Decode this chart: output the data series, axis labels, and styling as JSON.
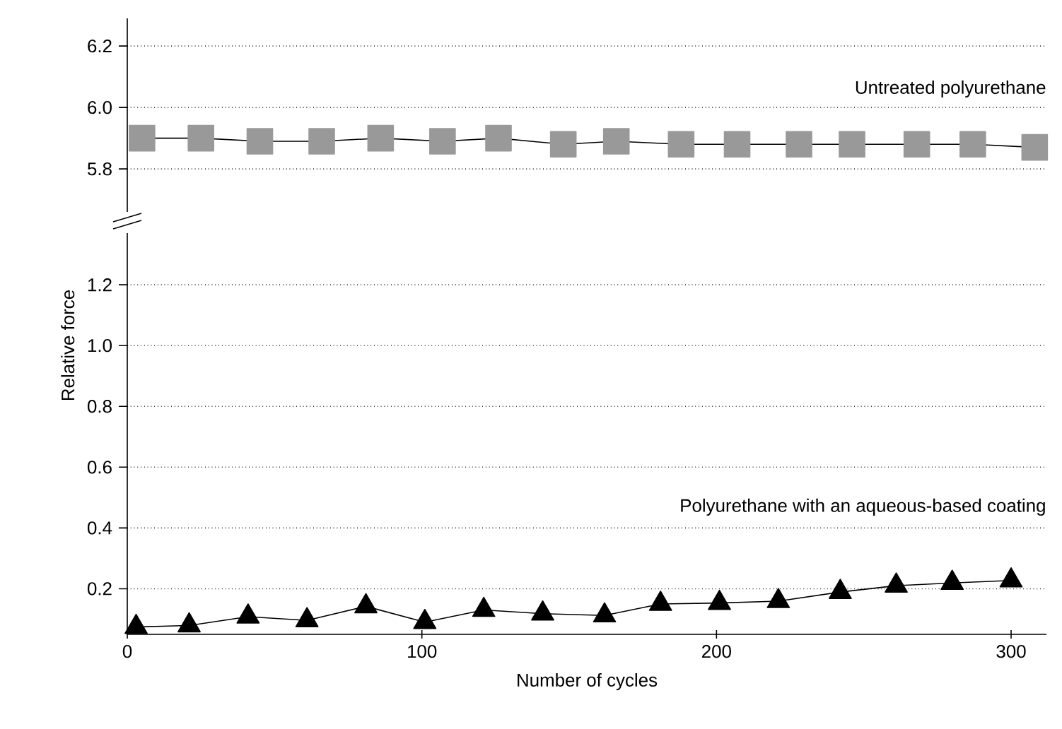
{
  "chart_data": [
    {
      "type": "line",
      "xlim": [
        0,
        312
      ],
      "ylim": [
        5.66,
        6.29
      ],
      "yticks": [
        5.8,
        {
          "value": 6.0,
          "label": "6.0"
        },
        6.2
      ],
      "tick_labels": "y",
      "grid": "y",
      "marker": "square",
      "line_style": "solid",
      "annotations": [
        "Untreated polyurethane"
      ],
      "series": [
        {
          "color": "#999999",
          "x": [
            5,
            25,
            45,
            66,
            86,
            107,
            126,
            148,
            166,
            188,
            207,
            228,
            246,
            268,
            287,
            308
          ],
          "values": [
            5.9,
            5.9,
            5.89,
            5.89,
            5.9,
            5.89,
            5.9,
            5.88,
            5.89,
            5.88,
            5.88,
            5.88,
            5.88,
            5.88,
            5.88,
            5.87
          ]
        }
      ]
    },
    {
      "type": "line",
      "xlim": [
        0,
        312
      ],
      "xticks": [
        0,
        100,
        200,
        300
      ],
      "ylim": [
        0.05,
        1.37
      ],
      "yticks": [
        0.2,
        0.4,
        0.6,
        0.8,
        {
          "value": 1.0,
          "label": "1.0"
        },
        1.2
      ],
      "grid": "y",
      "marker": "triangle",
      "line_style": "solid",
      "xlabel": "Number of cycles",
      "ylabel": "Relative force",
      "annotations": [
        "Polyurethane with an aqueous-based coating"
      ],
      "series": [
        {
          "color": "#000000",
          "x": [
            3,
            21,
            41,
            61,
            81,
            101,
            121,
            141,
            162,
            181,
            201,
            221,
            242,
            261,
            280,
            300
          ],
          "values": [
            0.074,
            0.079,
            0.108,
            0.096,
            0.142,
            0.09,
            0.13,
            0.118,
            0.112,
            0.15,
            0.153,
            0.159,
            0.189,
            0.21,
            0.219,
            0.227
          ]
        }
      ]
    }
  ]
}
